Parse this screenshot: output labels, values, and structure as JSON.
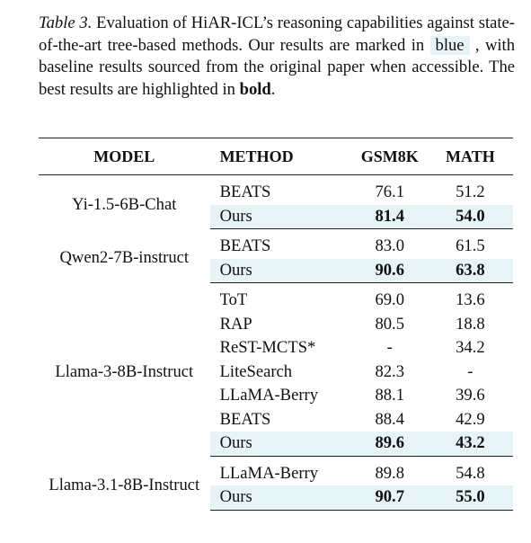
{
  "caption": {
    "label": "Table 3.",
    "text_1": " Evaluation of HiAR-ICL’s reasoning capabilities against state-of-the-art tree-based methods.  Our results are marked in ",
    "highlight": "blue",
    "text_2": " , with baseline results sourced from the original paper when accessible. The best results are highlighted in ",
    "bold_word": "bold",
    "text_3": "."
  },
  "table": {
    "headers": [
      "MODEL",
      "METHOD",
      "GSM8K",
      "MATH"
    ],
    "groups": [
      {
        "model": "Yi-1.5-6B-Chat",
        "rows": [
          {
            "method": "BEATS",
            "gsm8k": "76.1",
            "math": "51.2"
          },
          {
            "method": "Ours",
            "gsm8k": "81.4",
            "math": "54.0"
          }
        ]
      },
      {
        "model": "Qwen2-7B-instruct",
        "rows": [
          {
            "method": "BEATS",
            "gsm8k": "83.0",
            "math": "61.5"
          },
          {
            "method": "Ours",
            "gsm8k": "90.6",
            "math": "63.8"
          }
        ]
      },
      {
        "model": "Llama-3-8B-Instruct",
        "rows": [
          {
            "method": "ToT",
            "gsm8k": "69.0",
            "math": "13.6"
          },
          {
            "method": "RAP",
            "gsm8k": "80.5",
            "math": "18.8"
          },
          {
            "method": "ReST-MCTS*",
            "gsm8k": "-",
            "math": "34.2"
          },
          {
            "method": "LiteSearch",
            "gsm8k": "82.3",
            "math": "-"
          },
          {
            "method": "LLaMA-Berry",
            "gsm8k": "88.1",
            "math": "39.6"
          },
          {
            "method": "BEATS",
            "gsm8k": "88.4",
            "math": "42.9"
          },
          {
            "method": "Ours",
            "gsm8k": "89.6",
            "math": "43.2"
          }
        ]
      },
      {
        "model": "Llama-3.1-8B-Instruct",
        "rows": [
          {
            "method": "LLaMA-Berry",
            "gsm8k": "89.8",
            "math": "54.8"
          },
          {
            "method": "Ours",
            "gsm8k": "90.7",
            "math": "55.0"
          }
        ]
      }
    ]
  },
  "colors": {
    "highlight": "#e6f4f8",
    "text": "#111111"
  }
}
